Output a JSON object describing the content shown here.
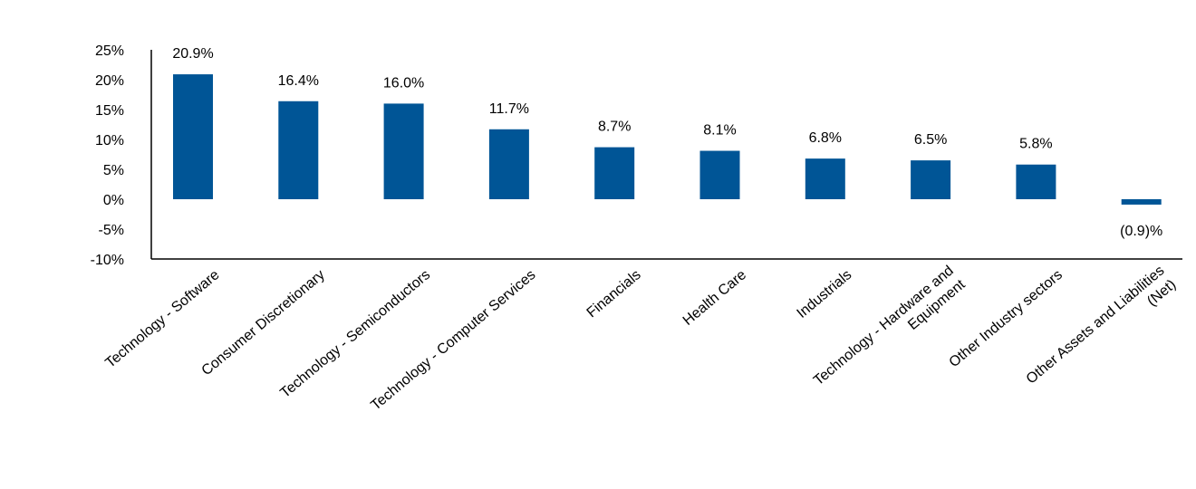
{
  "chart_data": {
    "type": "bar",
    "title": "",
    "xlabel": "",
    "ylabel": "",
    "ylim": [
      -10,
      25
    ],
    "y_ticks": [
      25,
      20,
      15,
      10,
      5,
      0,
      -5,
      -10
    ],
    "y_tick_labels": [
      "25%",
      "20%",
      "15%",
      "10%",
      "5%",
      "0%",
      "-5%",
      "-10%"
    ],
    "grid": false,
    "legend": "none",
    "bar_color": "#005596",
    "categories": [
      [
        "Technology - Software"
      ],
      [
        "Consumer Discretionary"
      ],
      [
        "Technology - Semiconductors"
      ],
      [
        "Technology - Computer Services"
      ],
      [
        "Financials"
      ],
      [
        "Health Care"
      ],
      [
        "Industrials"
      ],
      [
        "Technology - Hardware and",
        "Equipment"
      ],
      [
        "Other Industry sectors"
      ],
      [
        "Other Assets and Liabilities",
        "(Net)"
      ]
    ],
    "values": [
      20.9,
      16.4,
      16.0,
      11.7,
      8.7,
      8.1,
      6.8,
      6.5,
      5.8,
      -0.9
    ],
    "value_labels": [
      "20.9%",
      "16.4%",
      "16.0%",
      "11.7%",
      "8.7%",
      "8.1%",
      "6.8%",
      "6.5%",
      "5.8%",
      "(0.9)%"
    ]
  }
}
